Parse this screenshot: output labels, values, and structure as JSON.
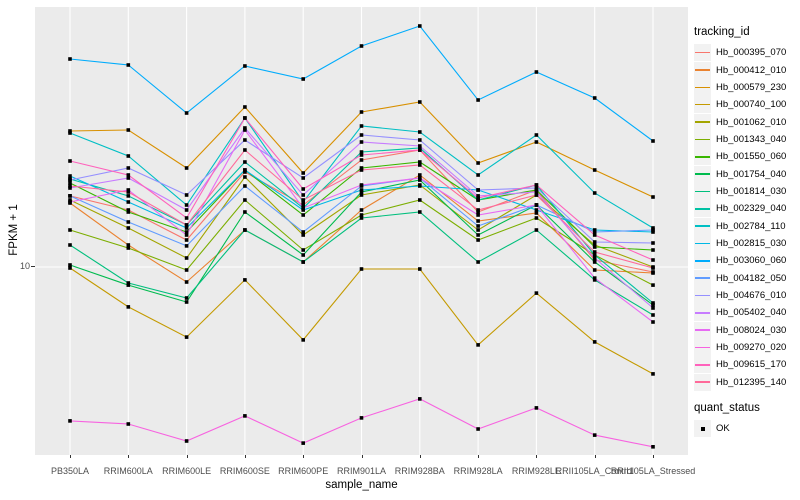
{
  "figure": {
    "background": "#FFFFFF",
    "panel_background": "#EBEBEB",
    "grid_color": "#FFFFFF",
    "point_color": "#000000"
  },
  "chart_data": {
    "type": "line",
    "title": "",
    "xlabel": "sample_name",
    "ylabel": "FPKM + 1",
    "yscale": "log10",
    "ytick_labels": [
      "10"
    ],
    "ylim_approx": [
      2.1,
      85
    ],
    "grid": "major-on",
    "legend_position": "right",
    "point_marker": "filled-square",
    "categories": [
      "PB350LA",
      "RRIM600LA",
      "RRIM600LE",
      "RRIM600SE",
      "RRIM600PE",
      "RRIM901LA",
      "RRIM928BA",
      "RRIM928LA",
      "RRIM928LE",
      "RRII105LA_Control",
      "RRII105LA_Stressed"
    ],
    "series": [
      {
        "name": "Hb_000395_070",
        "color": "#F8766D",
        "values": [
          17.94,
          15.98,
          12.49,
          21.85,
          16.65,
          24.11,
          26.17,
          15.72,
          18.84,
          10.59,
          9.6
        ]
      },
      {
        "name": "Hb_000412_010",
        "color": "#EA8331",
        "values": [
          16.93,
          11.98,
          8.84,
          13.56,
          10.42,
          15.98,
          21.31,
          14.6,
          15.59,
          9.76,
          9.52
        ]
      },
      {
        "name": "Hb_000579_230",
        "color": "#D89000",
        "values": [
          30.6,
          30.86,
          22.58,
          37.28,
          21.67,
          35.78,
          38.85,
          23.52,
          27.95,
          22.21,
          17.78
        ]
      },
      {
        "name": "Hb_000740_100",
        "color": "#C49A00",
        "values": [
          9.92,
          7.2,
          5.62,
          8.99,
          5.49,
          9.84,
          9.84,
          5.27,
          8.07,
          5.4,
          4.15
        ]
      },
      {
        "name": "Hb_001062_010",
        "color": "#A3A500",
        "values": [
          17.35,
          13.78,
          10.77,
          20.96,
          13.01,
          18.08,
          19.63,
          13.56,
          18.08,
          11.98,
          10.0
        ]
      },
      {
        "name": "Hb_001343_040",
        "color": "#7CAE00",
        "values": [
          13.56,
          11.69,
          9.76,
          17.35,
          11.5,
          15.34,
          17.35,
          12.49,
          14.96,
          11.04,
          8.62
        ]
      },
      {
        "name": "Hb_001550_060",
        "color": "#39B600",
        "values": [
          19.95,
          15.72,
          13.34,
          22.21,
          15.34,
          22.58,
          23.71,
          17.35,
          18.84,
          11.79,
          11.5
        ]
      },
      {
        "name": "Hb_001754_040",
        "color": "#00BB4E",
        "values": [
          10.17,
          8.62,
          7.5,
          15.72,
          11.04,
          18.53,
          20.45,
          13.01,
          16.65,
          10.42,
          7.32
        ]
      },
      {
        "name": "Hb_001814_030",
        "color": "#00BF7D",
        "values": [
          11.98,
          8.77,
          7.75,
          13.56,
          10.42,
          14.96,
          15.72,
          10.42,
          13.56,
          8.99,
          6.74
        ]
      },
      {
        "name": "Hb_002329_040",
        "color": "#00C1A3",
        "values": [
          20.62,
          17.94,
          14.13,
          23.71,
          16.25,
          25.75,
          26.61,
          17.35,
          19.63,
          11.04,
          7.44
        ]
      },
      {
        "name": "Hb_002784_110",
        "color": "#00BFC4",
        "values": [
          30.11,
          24.92,
          16.65,
          34.04,
          17.07,
          31.89,
          30.35,
          21.31,
          29.62,
          18.38,
          13.78
        ]
      },
      {
        "name": "Hb_002815_030",
        "color": "#00B8E5",
        "values": [
          21.13,
          17.07,
          13.78,
          22.21,
          15.98,
          18.84,
          19.47,
          18.84,
          15.98,
          13.56,
          13.34
        ]
      },
      {
        "name": "Hb_003060_060",
        "color": "#00ACFC",
        "values": [
          55.33,
          52.66,
          35.48,
          52.23,
          46.92,
          61.56,
          72.57,
          39.48,
          49.71,
          40.14,
          28.18
        ]
      },
      {
        "name": "Hb_004182_050",
        "color": "#619CFF",
        "values": [
          17.94,
          14.48,
          11.89,
          19.47,
          13.34,
          19.47,
          20.79,
          14.01,
          16.65,
          13.34,
          13.56
        ]
      },
      {
        "name": "Hb_004676_010",
        "color": "#9590FF",
        "values": [
          20.45,
          22.58,
          18.08,
          28.42,
          20.79,
          29.62,
          28.42,
          18.84,
          19.15,
          12.28,
          12.18
        ]
      },
      {
        "name": "Hb_005402_040",
        "color": "#C77CFF",
        "values": [
          19.15,
          20.79,
          15.98,
          31.37,
          18.08,
          27.95,
          27.04,
          17.94,
          18.53,
          10.77,
          7.14
        ]
      },
      {
        "name": "Hb_008024_030",
        "color": "#E76BF3",
        "values": [
          17.07,
          18.84,
          13.01,
          30.86,
          16.25,
          19.63,
          20.79,
          15.34,
          16.65,
          9.13,
          6.36
        ]
      },
      {
        "name": "Hb_009270_020",
        "color": "#F763E0",
        "values": [
          2.82,
          2.75,
          2.39,
          2.94,
          2.35,
          2.89,
          3.38,
          2.64,
          3.14,
          2.51,
          2.28
        ]
      },
      {
        "name": "Hb_009615_170",
        "color": "#FF62BC",
        "values": [
          23.91,
          21.31,
          14.96,
          34.04,
          18.99,
          25.12,
          26.17,
          17.64,
          19.63,
          13.01,
          10.59
        ]
      },
      {
        "name": "Hb_012395_140",
        "color": "#FF6A9A",
        "values": [
          19.47,
          18.53,
          14.13,
          26.17,
          17.35,
          22.21,
          23.14,
          15.98,
          18.08,
          11.31,
          9.92
        ]
      }
    ]
  },
  "legend": {
    "tracking_title": "tracking_id",
    "quant_title": "quant_status",
    "quant_items": [
      "OK"
    ]
  }
}
